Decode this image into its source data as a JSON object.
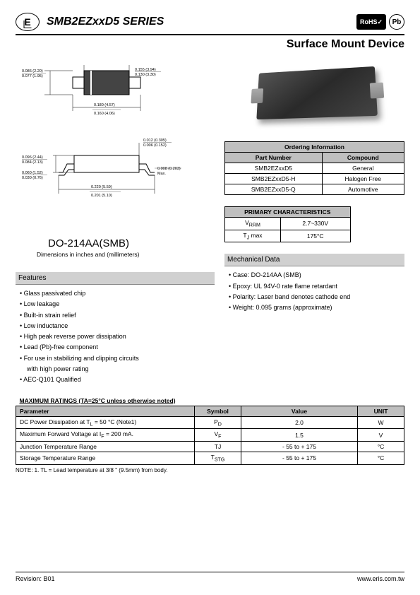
{
  "header": {
    "logo_text": "E",
    "title": "SMB2EZxxD5 SERIES",
    "badge_rohs": "RoHS",
    "badge_pb": "Pb",
    "subtitle": "Surface Mount Device"
  },
  "package": {
    "name": "DO-214AA(SMB)",
    "note": "Dimensions in inches and (millimeters)",
    "dims": {
      "top_h1": "0.086 (2.20)",
      "top_h2": "0.077 (1.95)",
      "top_w1": "0.155 (3.94)",
      "top_w2": "0.130 (3.30)",
      "top_b1": "0.180 (4.57)",
      "top_b2": "0.160 (4.06)",
      "bot_h1": "0.096 (2.44)",
      "bot_h2": "0.084 (2.13)",
      "bot_s1": "0.060 (1.52)",
      "bot_s2": "0.030 (0.76)",
      "bot_t1": "0.012 (0.305)",
      "bot_t2": "0.006 (0.152)",
      "bot_l1": "0.008 (0.203)",
      "bot_l2": "Max.",
      "bot_w1": "0.220 (5.59)",
      "bot_w2": "0.201 (5.10)"
    }
  },
  "ordering": {
    "title": "Ordering Information",
    "col1": "Part Number",
    "col2": "Compound",
    "rows": [
      {
        "pn": "SMB2EZxxD5",
        "comp": "General"
      },
      {
        "pn": "SMB2EZxxD5-H",
        "comp": "Halogen Free"
      },
      {
        "pn": "SMB2EZxxD5-Q",
        "comp": "Automotive"
      }
    ]
  },
  "primary": {
    "title": "PRIMARY CHARACTERISTICS",
    "rows": [
      {
        "k": "V",
        "sub": "RRM",
        "v": "2.7~330V"
      },
      {
        "k": "T",
        "sub": "J",
        "suffix": " max",
        "v": "175°C"
      }
    ]
  },
  "features": {
    "title": "Features",
    "items": [
      "Glass passivated chip",
      "Low leakage",
      "Built-in strain relief",
      "Low inductance",
      "High peak reverse power dissipation",
      "Lead (Pb)-free component",
      "For use in stabilizing and clipping circuits",
      "with high power rating",
      "AEC-Q101 Qualified"
    ],
    "indent_idx": 7
  },
  "mechdata": {
    "title": "Mechanical Data",
    "items": [
      "Case: DO-214AA (SMB)",
      "Epoxy: UL 94V-0 rate flame retardant",
      "Polarity: Laser band denotes cathode end",
      "Weight: 0.095 grams (approximate)"
    ]
  },
  "maxratings": {
    "title": "MAXIMUM RATINGS (TA=25°C unless otherwise noted)",
    "cols": [
      "Parameter",
      "Symbol",
      "Value",
      "UNIT"
    ],
    "rows": [
      {
        "p": "DC Power Dissipation at T",
        "psub": "L",
        "ptail": " = 50 °C (Note1)",
        "s": "P",
        "ss": "D",
        "v": "2.0",
        "u": "W"
      },
      {
        "p": "Maximum Forward Voltage at I",
        "psub": "F",
        "ptail": " = 200 mA.",
        "s": "V",
        "ss": "F",
        "v": "1.5",
        "u": "V"
      },
      {
        "p": "Junction Temperature Range",
        "psub": "",
        "ptail": "",
        "s": "TJ",
        "ss": "",
        "v": "- 55 to + 175",
        "u": "°C"
      },
      {
        "p": "Storage Temperature Range",
        "psub": "",
        "ptail": "",
        "s": "T",
        "ss": "STG",
        "v": "- 55 to + 175",
        "u": "°C"
      }
    ],
    "note": "NOTE: 1. TL = Lead temperature at 3/8 \" (9.5mm) from body."
  },
  "footer": {
    "rev": "Revision: B01",
    "url": "www.eris.com.tw"
  }
}
